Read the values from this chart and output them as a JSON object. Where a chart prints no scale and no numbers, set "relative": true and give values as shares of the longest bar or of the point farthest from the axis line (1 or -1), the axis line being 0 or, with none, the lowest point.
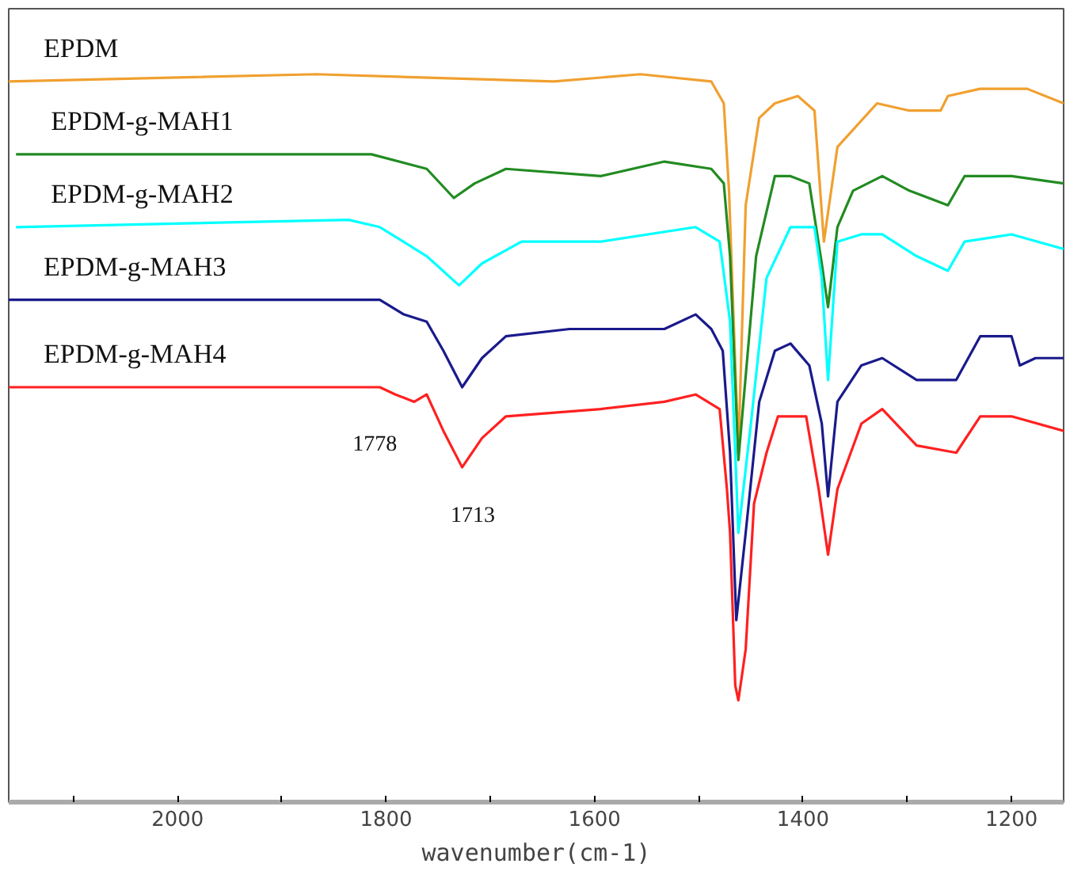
{
  "chart_data": {
    "type": "line",
    "relative": true,
    "xlabel": "wavenumber(cm-1)",
    "tick_labels": "x",
    "grid": false,
    "xlim": [
      2162,
      1150
    ],
    "xticks": [
      {
        "value": 2100,
        "label": null
      },
      2000,
      {
        "value": 1900,
        "label": null
      },
      1800,
      {
        "value": 1700,
        "label": null
      },
      1600,
      {
        "value": 1500,
        "label": null
      },
      1400,
      {
        "value": 1300,
        "label": null
      },
      1200
    ],
    "annotations": [
      "1778",
      "1713"
    ],
    "series": [
      {
        "name": "EPDM",
        "color": "#f0a030",
        "x": [
          2162,
          1867,
          1639,
          1556,
          1488,
          1476,
          1471,
          1462,
          1455,
          1442,
          1427,
          1405,
          1389,
          1380,
          1367,
          1329,
          1298,
          1268,
          1261,
          1230,
          1185,
          1150
        ],
        "values": [
          0.99,
          1.0,
          0.99,
          1.0,
          0.99,
          0.96,
          0.84,
          0.48,
          0.82,
          0.94,
          0.96,
          0.97,
          0.95,
          0.77,
          0.9,
          0.96,
          0.95,
          0.95,
          0.97,
          0.98,
          0.98,
          0.96
        ]
      },
      {
        "name": "EPDM-g-MAH1",
        "color": "#228b22",
        "x": [
          2155,
          1814,
          1761,
          1735,
          1715,
          1685,
          1594,
          1533,
          1488,
          1476,
          1470,
          1462,
          1445,
          1427,
          1412,
          1394,
          1382,
          1376,
          1367,
          1352,
          1324,
          1298,
          1261,
          1245,
          1200,
          1150
        ],
        "values": [
          0.89,
          0.89,
          0.87,
          0.83,
          0.85,
          0.87,
          0.86,
          0.88,
          0.87,
          0.85,
          0.75,
          0.47,
          0.75,
          0.86,
          0.86,
          0.85,
          0.74,
          0.68,
          0.79,
          0.84,
          0.86,
          0.84,
          0.82,
          0.86,
          0.86,
          0.85
        ]
      },
      {
        "name": "EPDM-g-MAH2",
        "color": "#00ffff",
        "x": [
          2155,
          1836,
          1806,
          1761,
          1730,
          1708,
          1670,
          1594,
          1503,
          1480,
          1470,
          1462,
          1450,
          1435,
          1412,
          1389,
          1382,
          1376,
          1367,
          1344,
          1324,
          1291,
          1261,
          1245,
          1200,
          1150
        ],
        "values": [
          0.79,
          0.8,
          0.79,
          0.75,
          0.71,
          0.74,
          0.77,
          0.77,
          0.79,
          0.77,
          0.66,
          0.37,
          0.52,
          0.72,
          0.79,
          0.79,
          0.72,
          0.58,
          0.77,
          0.78,
          0.78,
          0.75,
          0.73,
          0.77,
          0.78,
          0.76
        ]
      },
      {
        "name": "EPDM-g-MAH3",
        "color": "#1a1a8c",
        "x": [
          2162,
          1806,
          1783,
          1761,
          1745,
          1727,
          1708,
          1685,
          1624,
          1533,
          1503,
          1488,
          1477,
          1470,
          1464,
          1455,
          1442,
          1427,
          1412,
          1394,
          1382,
          1376,
          1367,
          1344,
          1324,
          1291,
          1253,
          1230,
          1200,
          1192,
          1177,
          1150
        ],
        "values": [
          0.69,
          0.69,
          0.67,
          0.66,
          0.62,
          0.57,
          0.61,
          0.64,
          0.65,
          0.65,
          0.67,
          0.65,
          0.62,
          0.48,
          0.25,
          0.37,
          0.55,
          0.62,
          0.63,
          0.6,
          0.52,
          0.42,
          0.55,
          0.6,
          0.61,
          0.58,
          0.58,
          0.64,
          0.64,
          0.6,
          0.61,
          0.61
        ]
      },
      {
        "name": "EPDM-g-MAH4",
        "color": "#ff2020",
        "x": [
          2162,
          1806,
          1791,
          1773,
          1761,
          1745,
          1727,
          1708,
          1685,
          1594,
          1533,
          1503,
          1480,
          1473,
          1470,
          1465,
          1462,
          1455,
          1447,
          1435,
          1424,
          1397,
          1385,
          1376,
          1367,
          1344,
          1324,
          1291,
          1253,
          1230,
          1200,
          1150
        ],
        "values": [
          0.57,
          0.57,
          0.56,
          0.55,
          0.56,
          0.51,
          0.46,
          0.5,
          0.53,
          0.54,
          0.55,
          0.56,
          0.54,
          0.43,
          0.37,
          0.16,
          0.14,
          0.21,
          0.41,
          0.48,
          0.53,
          0.53,
          0.43,
          0.34,
          0.43,
          0.52,
          0.54,
          0.49,
          0.48,
          0.53,
          0.53,
          0.51
        ]
      }
    ]
  }
}
